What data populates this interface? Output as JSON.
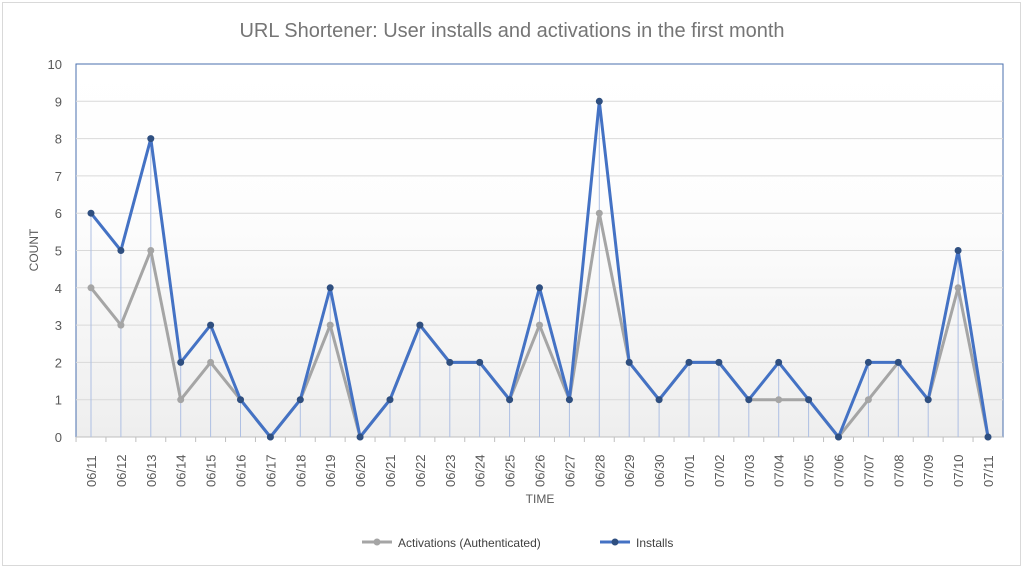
{
  "chart_data": {
    "type": "line",
    "title": "URL Shortener: User installs and activations in the first month",
    "xlabel": "TIME",
    "ylabel": "COUNT",
    "ylim": [
      0,
      10
    ],
    "yticks": [
      0,
      1,
      2,
      3,
      4,
      5,
      6,
      7,
      8,
      9,
      10
    ],
    "grid": true,
    "legend_position": "bottom",
    "categories": [
      "06/11",
      "06/12",
      "06/13",
      "06/14",
      "06/15",
      "06/16",
      "06/17",
      "06/18",
      "06/19",
      "06/20",
      "06/21",
      "06/22",
      "06/23",
      "06/24",
      "06/25",
      "06/26",
      "06/27",
      "06/28",
      "06/29",
      "06/30",
      "07/01",
      "07/02",
      "07/03",
      "07/04",
      "07/05",
      "07/06",
      "07/07",
      "07/08",
      "07/09",
      "07/10",
      "07/11"
    ],
    "series": [
      {
        "name": "Activations (Authenticated)",
        "color": "#a5a5a5",
        "values": [
          4,
          3,
          5,
          1,
          2,
          1,
          0,
          1,
          3,
          0,
          1,
          3,
          2,
          2,
          1,
          3,
          1,
          6,
          2,
          1,
          2,
          2,
          1,
          1,
          1,
          0,
          1,
          2,
          1,
          4,
          0
        ]
      },
      {
        "name": "Installs",
        "color": "#4472c4",
        "marker_color": "#2f4f80",
        "drop_lines": true,
        "values": [
          6,
          5,
          8,
          2,
          3,
          1,
          0,
          1,
          4,
          0,
          1,
          3,
          2,
          2,
          1,
          4,
          1,
          9,
          2,
          1,
          2,
          2,
          1,
          2,
          1,
          0,
          2,
          2,
          1,
          5,
          0
        ]
      }
    ]
  }
}
